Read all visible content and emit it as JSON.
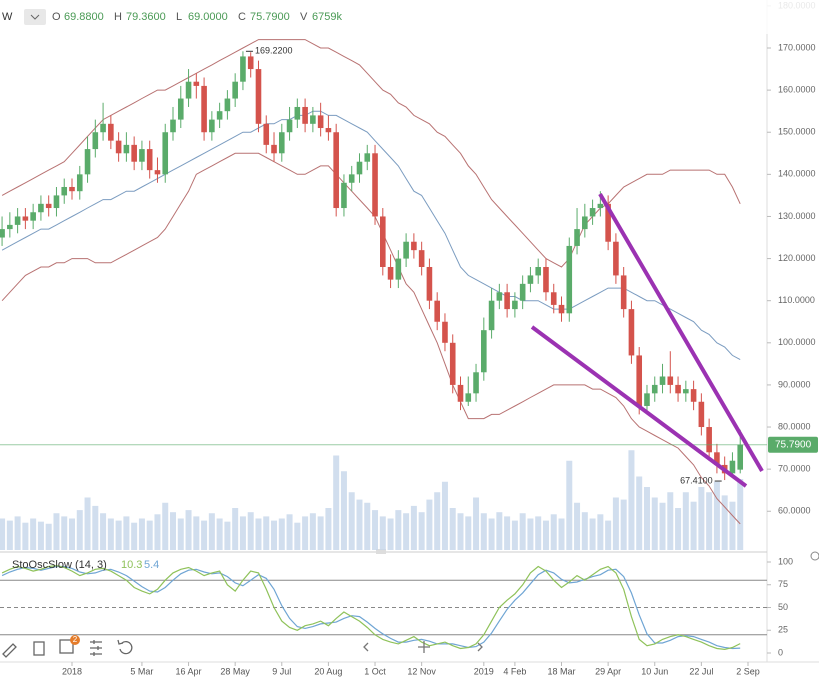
{
  "chart_data": {
    "type": "candlestick",
    "symbol": "W",
    "header": [
      {
        "label": "O",
        "value": "69.8800"
      },
      {
        "label": "H",
        "value": "79.3600"
      },
      {
        "label": "L",
        "value": "69.0000"
      },
      {
        "label": "C",
        "value": "75.7900"
      },
      {
        "label": "V",
        "value": "6759k"
      }
    ],
    "up_color": "#5aab6a",
    "down_color": "#d4534c",
    "open": [
      125,
      127,
      128,
      130,
      129,
      131,
      133,
      132,
      135,
      137,
      136,
      140,
      146,
      150,
      152,
      148,
      145,
      147,
      143,
      146,
      141,
      140,
      150,
      153,
      158,
      162,
      161,
      150,
      153,
      155,
      158,
      162,
      168,
      165,
      152,
      147,
      145,
      150,
      153,
      156,
      152,
      154,
      151,
      150,
      132,
      138,
      140,
      143,
      145,
      130,
      118,
      115,
      120,
      124,
      122,
      118,
      110,
      105,
      100,
      90,
      86,
      88,
      93,
      103,
      110,
      112,
      108,
      110,
      114,
      116,
      118,
      112,
      109,
      107,
      123,
      127,
      130,
      132,
      133,
      124,
      116,
      108,
      97,
      85,
      88,
      90,
      92,
      90,
      88,
      89,
      86,
      80,
      74,
      71,
      69,
      69.88
    ],
    "high": [
      130,
      131,
      132,
      132,
      133,
      135,
      135,
      137,
      139,
      139,
      142,
      149,
      153,
      157,
      154,
      150,
      150,
      149,
      148,
      148,
      144,
      152,
      156,
      161,
      165,
      164,
      163,
      155,
      157,
      160,
      164,
      169.22,
      169,
      167,
      154,
      150,
      152,
      156,
      158,
      158,
      156,
      157,
      154,
      152,
      140,
      142,
      145,
      147,
      147,
      132,
      121,
      122,
      126,
      126,
      124,
      120,
      112,
      107,
      102,
      92,
      92,
      95,
      106,
      113,
      114,
      114,
      112,
      116,
      118,
      120,
      120,
      114,
      111,
      125,
      132,
      133,
      134,
      136,
      135,
      126,
      118,
      110,
      99,
      90,
      92,
      95,
      98,
      92,
      91,
      91,
      88,
      82,
      76,
      73,
      74,
      79.36
    ],
    "low": [
      123,
      125,
      126,
      127,
      127,
      129,
      130,
      130,
      133,
      134,
      134,
      138,
      144,
      148,
      146,
      143,
      143,
      141,
      141,
      139,
      138,
      138,
      148,
      151,
      156,
      158,
      148,
      148,
      151,
      153,
      156,
      160,
      163,
      150,
      145,
      143,
      143,
      148,
      151,
      150,
      150,
      149,
      148,
      130,
      130,
      136,
      138,
      141,
      128,
      116,
      113,
      113,
      118,
      120,
      116,
      108,
      103,
      98,
      88,
      84,
      85,
      86,
      91,
      101,
      108,
      106,
      106,
      108,
      112,
      114,
      110,
      107,
      105,
      105,
      121,
      125,
      128,
      130,
      122,
      114,
      106,
      95,
      83,
      83,
      86,
      88,
      88,
      86,
      86,
      84,
      78,
      72,
      69,
      67.41,
      68,
      69
    ],
    "close": [
      127,
      128,
      130,
      129,
      131,
      133,
      132,
      135,
      137,
      136,
      140,
      146,
      150,
      152,
      148,
      145,
      147,
      143,
      146,
      141,
      140,
      150,
      153,
      158,
      162,
      161,
      150,
      153,
      155,
      158,
      162,
      168,
      165,
      152,
      147,
      145,
      150,
      153,
      156,
      152,
      154,
      151,
      150,
      132,
      138,
      140,
      143,
      145,
      130,
      118,
      115,
      120,
      124,
      122,
      118,
      110,
      105,
      100,
      90,
      86,
      88,
      93,
      103,
      110,
      112,
      108,
      110,
      114,
      116,
      118,
      112,
      109,
      107,
      123,
      127,
      130,
      132,
      133,
      124,
      116,
      108,
      97,
      85,
      88,
      90,
      92,
      90,
      88,
      89,
      86,
      80,
      74,
      71,
      69,
      72,
      75.79
    ],
    "ylim": [
      50.8,
      181.4
    ],
    "yticks": [
      {
        "value": 60,
        "label": "60.0000"
      },
      {
        "value": 70,
        "label": "70.0000"
      },
      {
        "value": 80,
        "label": "80.0000"
      },
      {
        "value": 90,
        "label": "90.0000"
      },
      {
        "value": 100,
        "label": "100.0000"
      },
      {
        "value": 110,
        "label": "110.0000"
      },
      {
        "value": 120,
        "label": "120.0000"
      },
      {
        "value": 130,
        "label": "130.0000"
      },
      {
        "value": 140,
        "label": "140.0000"
      },
      {
        "value": 150,
        "label": "150.0000"
      },
      {
        "value": 160,
        "label": "160.0000"
      },
      {
        "value": 170,
        "label": "170.0000"
      },
      {
        "value": 180,
        "label": "180.0000"
      }
    ],
    "xticks": [
      {
        "value": 9,
        "label": "2018"
      },
      {
        "value": 18,
        "label": "5 Mar"
      },
      {
        "value": 24,
        "label": "16 Apr"
      },
      {
        "value": 30,
        "label": "28 May"
      },
      {
        "value": 36,
        "label": "9 Jul"
      },
      {
        "value": 42,
        "label": "20 Aug"
      },
      {
        "value": 48,
        "label": "1 Oct"
      },
      {
        "value": 54,
        "label": "12 Nov"
      },
      {
        "value": 62,
        "label": "2019"
      },
      {
        "value": 66,
        "label": "4 Feb"
      },
      {
        "value": 72,
        "label": "18 Mar"
      },
      {
        "value": 78,
        "label": "29 Apr"
      },
      {
        "value": 84,
        "label": "10 Jun"
      },
      {
        "value": 90,
        "label": "22 Jul"
      },
      {
        "value": 96,
        "label": "2 Sep"
      }
    ],
    "bands": [
      {
        "color": "#b87272",
        "values": [
          135,
          136,
          137,
          138,
          139,
          140,
          141,
          142,
          143,
          145,
          147,
          149,
          151,
          153,
          154,
          155,
          156,
          157,
          158,
          159,
          160,
          160,
          161,
          162,
          163,
          164,
          165,
          166,
          167,
          168,
          169,
          170,
          171,
          172,
          172,
          172,
          172,
          172,
          172,
          172,
          171,
          170,
          170,
          169,
          168,
          167,
          166,
          164,
          162,
          160,
          159,
          157,
          156,
          154,
          153,
          152,
          150,
          149,
          147,
          145,
          142,
          140,
          137,
          134,
          132,
          130,
          128,
          126,
          124,
          122,
          120,
          119,
          118,
          120,
          124,
          128,
          130,
          132,
          133,
          135,
          137,
          138,
          139,
          140,
          140,
          140,
          141,
          141,
          141,
          141,
          141,
          141,
          140,
          140,
          137,
          133
        ]
      },
      {
        "color": "#7b9cc0",
        "values": [
          122,
          123,
          124,
          125,
          126,
          127,
          127,
          128,
          129,
          130,
          131,
          132,
          133,
          134,
          134,
          135,
          136,
          136,
          137,
          138,
          139,
          140,
          141,
          142,
          143,
          144,
          145,
          146,
          147,
          148,
          149,
          150,
          150,
          151,
          152,
          152,
          153,
          153,
          154,
          154,
          155,
          155,
          154,
          154,
          153,
          152,
          151,
          150,
          148,
          146,
          144,
          142,
          139,
          136,
          135,
          132,
          129,
          126,
          122,
          118,
          116,
          115,
          114,
          113,
          112,
          111,
          111,
          110,
          110,
          110,
          109,
          108,
          108,
          108,
          109,
          110,
          111,
          112,
          113,
          113,
          113,
          112,
          111,
          110,
          110,
          109,
          108,
          107,
          106,
          105,
          103,
          102,
          100,
          99,
          97,
          96
        ]
      },
      {
        "color": "#b87272",
        "values": [
          110,
          112,
          114,
          116,
          117,
          118,
          118,
          119,
          119,
          120,
          120,
          120,
          119,
          119,
          119,
          120,
          121,
          122,
          123,
          124,
          125,
          127,
          130,
          133,
          136,
          140,
          141,
          142,
          143,
          144,
          145,
          145,
          145,
          145,
          144,
          143,
          142,
          141,
          140,
          140,
          141,
          142,
          142,
          140,
          138,
          136,
          134,
          132,
          130,
          126,
          122,
          118,
          114,
          112,
          108,
          104,
          100,
          95,
          90,
          86,
          82,
          82,
          82,
          83,
          83,
          84,
          85,
          86,
          87,
          88,
          89,
          90,
          90,
          90,
          90,
          90,
          89,
          89,
          88,
          87,
          85,
          82,
          80,
          79,
          78,
          77,
          76,
          75,
          73,
          71,
          68,
          66,
          63,
          61,
          59,
          57
        ]
      }
    ],
    "volume": {
      "color": "#c5d6ea",
      "ylim": [
        0,
        10000
      ],
      "values": [
        3000,
        2800,
        3200,
        2600,
        3000,
        2700,
        2500,
        3500,
        3200,
        3000,
        3800,
        5000,
        4200,
        3500,
        3000,
        2800,
        3200,
        2600,
        3000,
        2800,
        3400,
        4500,
        3600,
        3000,
        3800,
        3200,
        2800,
        3500,
        3000,
        2700,
        4000,
        3200,
        3600,
        3000,
        3200,
        2800,
        3000,
        3400,
        2600,
        3200,
        3500,
        3200,
        4000,
        9000,
        7500,
        5500,
        4800,
        4500,
        3800,
        3200,
        3000,
        3800,
        3500,
        4200,
        3600,
        4800,
        5500,
        6500,
        4000,
        3500,
        3200,
        5000,
        3500,
        3000,
        3600,
        3200,
        2800,
        3500,
        3000,
        3200,
        2800,
        3400,
        3000,
        8500,
        4500,
        3600,
        3000,
        3400,
        2800,
        5000,
        4800,
        9500,
        7000,
        6000,
        5000,
        4500,
        5500,
        4000,
        5500,
        4600,
        6000,
        5500,
        6500,
        5200,
        4600,
        6759
      ]
    },
    "annotations": [
      {
        "text": "169.2200",
        "index": 31
      },
      {
        "text": "67.4100",
        "index": 93
      }
    ],
    "last_price_label": "75.7900",
    "last_price_color": "#5aab6a",
    "stoch": {
      "title": "StoOscSlow (14, 3)",
      "ylim": [
        0,
        100
      ],
      "yticks": [
        0,
        25,
        50,
        75,
        100
      ],
      "levels": [
        80,
        50,
        20
      ],
      "k": {
        "color": "#8fc25a",
        "values": [
          88,
          92,
          95,
          93,
          90,
          92,
          95,
          96,
          94,
          90,
          85,
          88,
          92,
          93,
          90,
          85,
          80,
          72,
          68,
          65,
          70,
          80,
          88,
          92,
          94,
          90,
          85,
          88,
          90,
          75,
          68,
          80,
          90,
          88,
          70,
          50,
          35,
          28,
          25,
          30,
          32,
          35,
          30,
          38,
          45,
          40,
          35,
          28,
          20,
          15,
          12,
          10,
          14,
          18,
          12,
          8,
          10,
          12,
          8,
          5,
          6,
          10,
          20,
          35,
          50,
          58,
          65,
          75,
          88,
          95,
          90,
          80,
          72,
          78,
          85,
          80,
          86,
          92,
          95,
          88,
          70,
          40,
          15,
          8,
          10,
          15,
          18,
          20,
          18,
          15,
          12,
          8,
          5,
          4,
          6,
          10.3
        ]
      },
      "d": {
        "color": "#6fa5d4",
        "values": [
          85,
          89,
          92,
          94,
          93,
          91,
          93,
          95,
          95,
          93,
          89,
          87,
          88,
          91,
          92,
          89,
          85,
          79,
          73,
          68,
          67,
          72,
          80,
          87,
          91,
          92,
          89,
          87,
          88,
          84,
          77,
          74,
          80,
          86,
          82,
          70,
          52,
          38,
          29,
          27,
          29,
          32,
          33,
          34,
          38,
          41,
          40,
          34,
          27,
          21,
          16,
          12,
          12,
          14,
          15,
          13,
          10,
          10,
          10,
          8,
          6,
          7,
          12,
          22,
          35,
          48,
          58,
          66,
          76,
          86,
          91,
          88,
          81,
          77,
          78,
          81,
          84,
          86,
          91,
          92,
          84,
          66,
          42,
          21,
          11,
          11,
          14,
          18,
          19,
          18,
          15,
          12,
          8,
          6,
          5,
          5.4
        ]
      }
    },
    "toolbar_badge": "2"
  }
}
